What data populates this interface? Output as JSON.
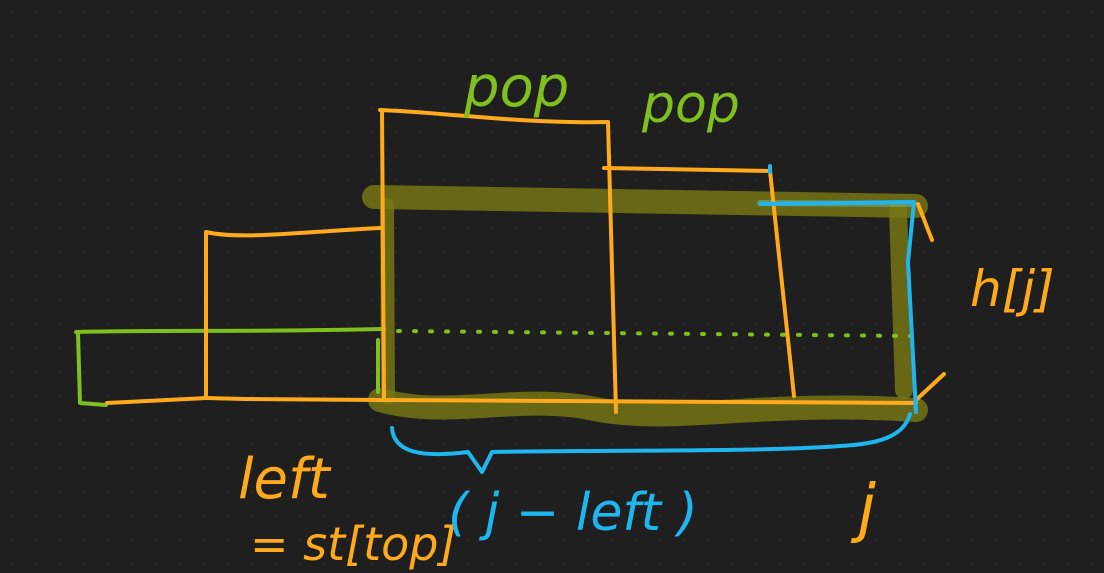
{
  "colors": {
    "background": "#1f1f1f",
    "grid_dot": "#2b2b2b",
    "orange": "#ffaa1d",
    "green": "#7fbf1f",
    "blue": "#1fb6f0",
    "highlight": "#8a8a12"
  },
  "labels": {
    "pop_1": "pop",
    "pop_2": "pop",
    "h_j": "h[j]",
    "left": "left",
    "st_top": "= st[top]",
    "width": "( j − left )",
    "j": "j"
  }
}
